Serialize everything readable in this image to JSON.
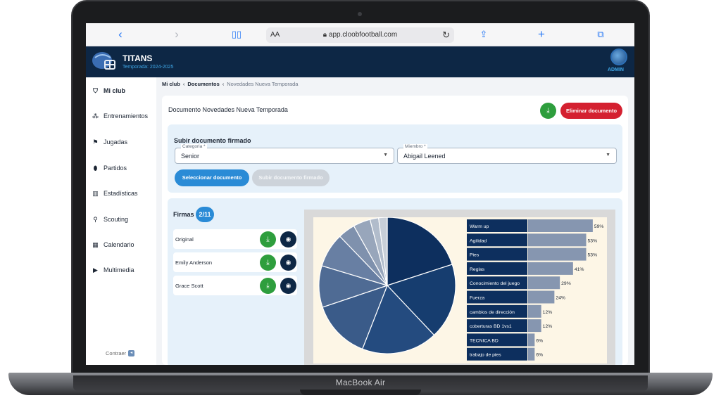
{
  "device": {
    "brand": "MacBook Air"
  },
  "browser": {
    "url": "app.cloobfootball.com",
    "aa_label": "AA",
    "icons": [
      "back-icon",
      "forward-icon",
      "bookmarks-icon",
      "lock-icon",
      "reload-icon",
      "share-icon",
      "new-tab-icon",
      "tabs-icon"
    ]
  },
  "header": {
    "club_name": "TITANS",
    "season": "Temporada: 2024-2025",
    "role": "ADMIN"
  },
  "sidebar": {
    "items": [
      {
        "label": "Mi club",
        "icon": "club-icon",
        "active": true
      },
      {
        "label": "Entrenamientos",
        "icon": "training-icon"
      },
      {
        "label": "Jugadas",
        "icon": "plays-icon"
      },
      {
        "label": "Partidos",
        "icon": "ball-icon"
      },
      {
        "label": "Estadísticas",
        "icon": "stats-icon"
      },
      {
        "label": "Scouting",
        "icon": "search-icon"
      },
      {
        "label": "Calendario",
        "icon": "calendar-icon"
      },
      {
        "label": "Multimedia",
        "icon": "play-icon"
      }
    ],
    "collapse_label": "Contraer"
  },
  "breadcrumb": {
    "items": [
      "Mi club",
      "Documentos",
      "Novedades Nueva Temporada"
    ]
  },
  "document": {
    "title": "Documento Novedades Nueva Temporada",
    "delete_label": "Eliminar documento"
  },
  "upload": {
    "title": "Subir documento firmado",
    "category": {
      "label": "Categoria *",
      "value": "Senior"
    },
    "member": {
      "label": "Miembro *",
      "value": "Abigail Leened"
    },
    "select_button": "Seleccionar documento",
    "upload_button": "Subir documento firmado"
  },
  "firmas": {
    "title": "Firmas",
    "count": "2/11",
    "rows": [
      {
        "name": "Original"
      },
      {
        "name": "Emily Anderson"
      },
      {
        "name": "Grace Scott"
      }
    ]
  },
  "chart_data": {
    "type": "bar",
    "categories": [
      "Warm up",
      "Agilidad",
      "Pies",
      "Reglas",
      "Conocimiento del juego",
      "Fuerza",
      "cambios de dirección",
      "coberturas BD 1vs1",
      "TECNICA BD",
      "trabajo de pies"
    ],
    "values": [
      59,
      53,
      53,
      41,
      29,
      24,
      12,
      12,
      6,
      6
    ],
    "value_labels": [
      "59%",
      "53%",
      "53%",
      "41%",
      "29%",
      "24%",
      "12%",
      "12%",
      "6%",
      "6%"
    ],
    "pie_colors": [
      "#0d2f5e",
      "#163d6f",
      "#244b7f",
      "#3a5b89",
      "#4f6b94",
      "#687fa3",
      "#7f91ad",
      "#98a6bb",
      "#b1bccb",
      "#c8cfd8"
    ],
    "bar_color": "#8696b0",
    "label_bg": "#0d2f5e"
  }
}
